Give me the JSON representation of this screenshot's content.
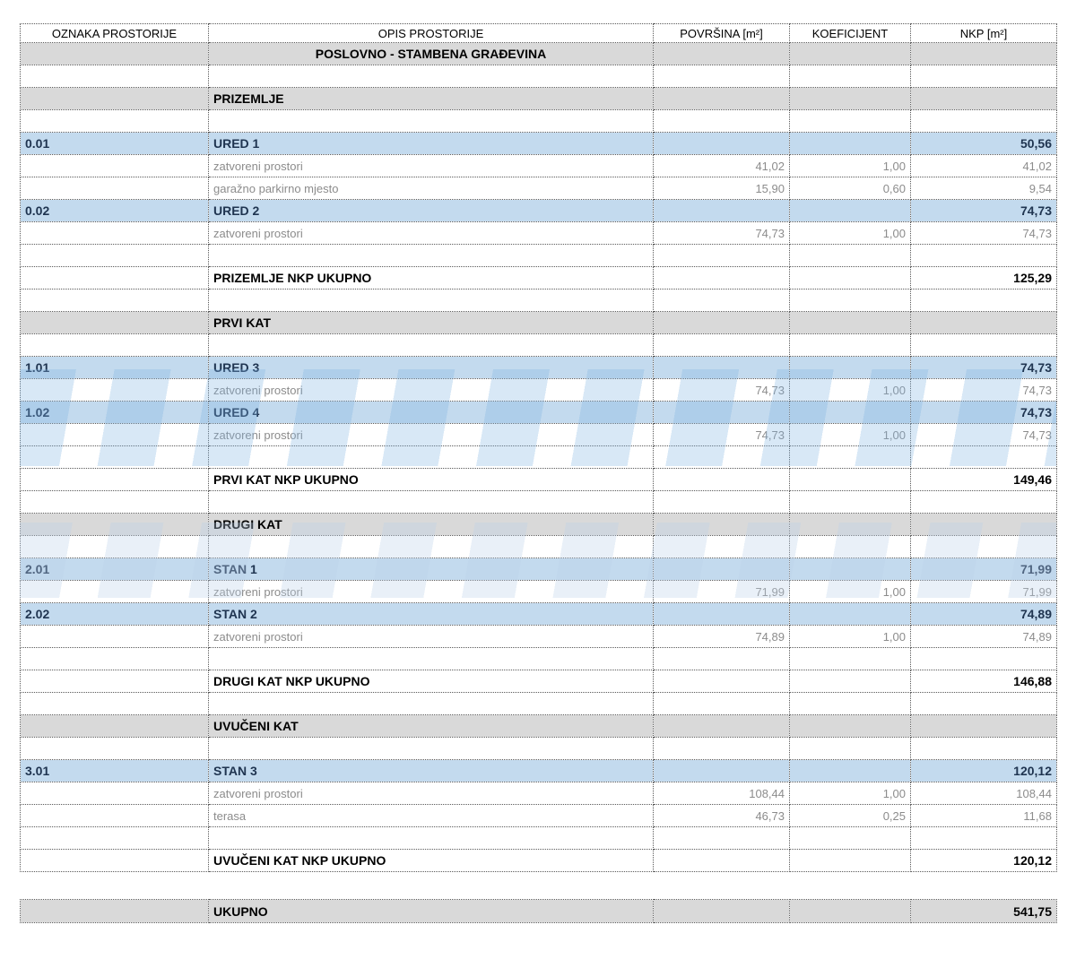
{
  "header": {
    "columns": [
      "OZNAKA PROSTORIJE",
      "OPIS PROSTORIJE",
      "POVRŠINA [m²]",
      "KOEFICIJENT",
      "NKP [m²]"
    ]
  },
  "table": {
    "rows": [
      {
        "type": "title",
        "opis": "POSLOVNO - STAMBENA GRAĐEVINA"
      },
      {
        "type": "empty"
      },
      {
        "type": "section",
        "opis": "PRIZEMLJE"
      },
      {
        "type": "empty"
      },
      {
        "type": "unit",
        "oznaka": "0.01",
        "opis": "URED 1",
        "nkp": "50,56"
      },
      {
        "type": "sub",
        "opis": "zatvoreni prostori",
        "povrsina": "41,02",
        "koef": "1,00",
        "nkp": "41,02"
      },
      {
        "type": "sub",
        "opis": "garažno parkirno mjesto",
        "povrsina": "15,90",
        "koef": "0,60",
        "nkp": "9,54"
      },
      {
        "type": "unit",
        "oznaka": "0.02",
        "opis": "URED 2",
        "nkp": "74,73"
      },
      {
        "type": "sub",
        "opis": "zatvoreni prostori",
        "povrsina": "74,73",
        "koef": "1,00",
        "nkp": "74,73"
      },
      {
        "type": "empty"
      },
      {
        "type": "total",
        "opis": "PRIZEMLJE NKP UKUPNO",
        "nkp": "125,29"
      },
      {
        "type": "empty"
      },
      {
        "type": "section",
        "opis": "PRVI KAT"
      },
      {
        "type": "empty"
      },
      {
        "type": "unit",
        "oznaka": "1.01",
        "opis": "URED 3",
        "nkp": "74,73"
      },
      {
        "type": "sub",
        "opis": "zatvoreni prostori",
        "povrsina": "74,73",
        "koef": "1,00",
        "nkp": "74,73"
      },
      {
        "type": "unit",
        "oznaka": "1.02",
        "opis": "URED 4",
        "nkp": "74,73"
      },
      {
        "type": "sub",
        "opis": "zatvoreni prostori",
        "povrsina": "74,73",
        "koef": "1,00",
        "nkp": "74,73"
      },
      {
        "type": "empty"
      },
      {
        "type": "total",
        "opis": "PRVI KAT NKP UKUPNO",
        "nkp": "149,46"
      },
      {
        "type": "empty"
      },
      {
        "type": "section",
        "opis": "DRUGI KAT"
      },
      {
        "type": "empty"
      },
      {
        "type": "unit",
        "oznaka": "2.01",
        "opis": "STAN 1",
        "nkp": "71,99"
      },
      {
        "type": "sub",
        "opis": "zatvoreni prostori",
        "povrsina": "71,99",
        "koef": "1,00",
        "nkp": "71,99"
      },
      {
        "type": "unit",
        "oznaka": "2.02",
        "opis": "STAN 2",
        "nkp": "74,89"
      },
      {
        "type": "sub",
        "opis": "zatvoreni prostori",
        "povrsina": "74,89",
        "koef": "1,00",
        "nkp": "74,89"
      },
      {
        "type": "empty"
      },
      {
        "type": "total",
        "opis": "DRUGI KAT NKP UKUPNO",
        "nkp": "146,88"
      },
      {
        "type": "empty"
      },
      {
        "type": "section",
        "opis": "UVUČENI KAT"
      },
      {
        "type": "empty"
      },
      {
        "type": "unit",
        "oznaka": "3.01",
        "opis": "STAN 3",
        "nkp": "120,12"
      },
      {
        "type": "sub",
        "opis": "zatvoreni prostori",
        "povrsina": "108,44",
        "koef": "1,00",
        "nkp": "108,44"
      },
      {
        "type": "sub",
        "opis": "terasa",
        "povrsina": "46,73",
        "koef": "0,25",
        "nkp": "11,68"
      },
      {
        "type": "empty"
      },
      {
        "type": "total",
        "opis": "UVUČENI KAT NKP UKUPNO",
        "nkp": "120,12"
      }
    ]
  },
  "grand_total": {
    "opis": "UKUPNO",
    "nkp": "541,75"
  },
  "colors": {
    "section_fill": "#d9d9d9",
    "unit_fill": "#c3daee",
    "unit_text": "#1f3450",
    "sub_text": "#8c8c8c",
    "border": "#595959"
  }
}
